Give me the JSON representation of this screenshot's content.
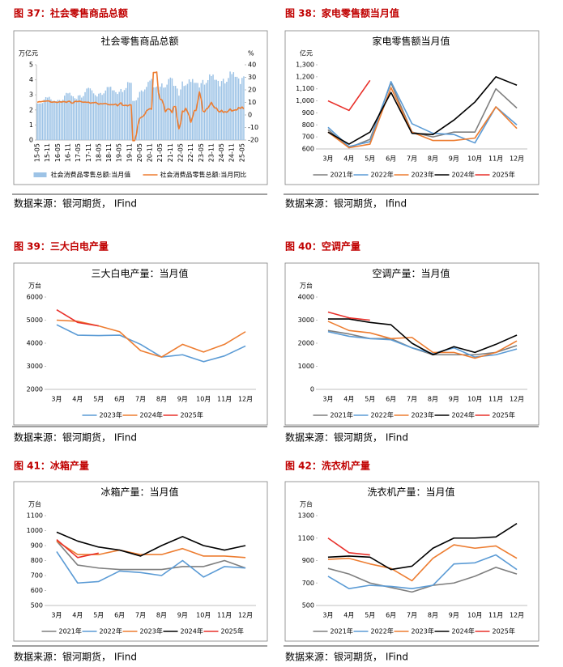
{
  "figures": [
    {
      "heading": "图 37：社会零售商品总额",
      "source": "数据来源：银河期货，  IFind"
    },
    {
      "heading": "图 38：家电零售额当月值",
      "source": "数据来源：银河期货，  Ifind"
    },
    {
      "heading": "图 39：三大白电产量",
      "source": "数据来源：银河期货，  IFind"
    },
    {
      "heading": "图 40：空调产量",
      "source": "数据来源：银河期货，  IFind"
    },
    {
      "heading": "图 41：冰箱产量",
      "source": "数据来源：银河期货，  IFind"
    },
    {
      "heading": "图 42：洗衣机产量",
      "source": "数据来源：银河期货，  IFind"
    }
  ],
  "chart_data": [
    {
      "type": "bar",
      "title": "社会零售商品总额",
      "y_label": "万亿元",
      "y2_label": "%",
      "categories": [
        "15-05",
        null,
        null,
        null,
        null,
        null,
        "15-11",
        null,
        null,
        null,
        null,
        null,
        "16-05",
        null,
        null,
        null,
        null,
        null,
        "16-11",
        null,
        null,
        null,
        null,
        null,
        "17-05",
        null,
        null,
        null,
        null,
        null,
        "17-11",
        null,
        null,
        null,
        null,
        null,
        "18-05",
        null,
        null,
        null,
        null,
        null,
        "18-11",
        null,
        null,
        null,
        null,
        null,
        "19-05",
        null,
        null,
        null,
        null,
        null,
        "19-11",
        null,
        null,
        null,
        null,
        null,
        "20-05",
        null,
        null,
        null,
        null,
        null,
        "20-11",
        null,
        null,
        null,
        null,
        null,
        "21-05",
        null,
        null,
        null,
        null,
        null,
        "21-11",
        null,
        null,
        null,
        null,
        null,
        "22-05",
        null,
        null,
        null,
        null,
        null,
        "22-11",
        null,
        null,
        null,
        null,
        null,
        "23-05",
        null,
        null,
        null,
        null,
        null,
        "23-11",
        null,
        null,
        null,
        null,
        null,
        "24-05",
        null,
        null,
        null,
        null,
        null,
        "24-11",
        null,
        null,
        null,
        null,
        null,
        "25-05",
        null
      ],
      "ylim": [
        0,
        5
      ],
      "yticks": [
        0,
        1,
        2,
        3,
        4,
        5
      ],
      "y2lim": [
        -20,
        40
      ],
      "y2ticks": [
        -20,
        -10,
        0,
        10,
        20,
        30,
        40
      ],
      "series": [
        {
          "name": "社会消费品零售总额:当月值",
          "color": "#9dc3e6",
          "values": [
            2.43,
            2.42,
            2.43,
            2.46,
            2.69,
            2.85,
            2.82,
            2.87,
            2.7,
            2.6,
            2.61,
            2.58,
            2.66,
            2.66,
            2.6,
            2.68,
            2.95,
            3.13,
            3.1,
            3.14,
            2.95,
            2.9,
            2.78,
            2.72,
            2.96,
            2.98,
            2.82,
            2.92,
            3.18,
            3.42,
            3.47,
            3.43,
            3.3,
            3.1,
            2.98,
            2.89,
            3.08,
            3.13,
            3.0,
            3.1,
            3.29,
            3.52,
            3.52,
            3.54,
            3.3,
            3.3,
            3.18,
            3.06,
            3.2,
            3.39,
            3.19,
            3.32,
            3.45,
            3.85,
            3.81,
            3.8,
            2.6,
            2.6,
            2.64,
            2.82,
            3.2,
            3.3,
            3.22,
            3.36,
            3.53,
            3.86,
            3.95,
            4.06,
            3.5,
            3.5,
            3.55,
            3.32,
            3.54,
            3.76,
            3.48,
            3.5,
            3.68,
            4.05,
            4.15,
            4.1,
            3.6,
            3.6,
            3.42,
            2.95,
            3.36,
            3.89,
            3.59,
            3.63,
            3.73,
            4.03,
            3.86,
            4.05,
            3.8,
            3.8,
            3.79,
            3.49,
            3.78,
            3.99,
            3.68,
            3.79,
            3.98,
            4.36,
            4.25,
            4.35,
            4.0,
            4.0,
            3.93,
            3.57,
            3.92,
            4.07,
            3.76,
            3.87,
            4.12,
            4.55,
            4.38,
            4.51,
            4.2,
            4.2,
            4.09,
            3.72,
            4.13,
            4.23
          ]
        },
        {
          "name": "社会消费品零售总额:当月同比",
          "color": "#ed7d31",
          "type": "line",
          "axis": "y2",
          "values": [
            10.1,
            10.6,
            10.5,
            10.8,
            10.9,
            11.0,
            11.2,
            11.1,
            10.2,
            10.2,
            10.5,
            10.1,
            10.0,
            10.6,
            10.2,
            10.6,
            10.7,
            10.0,
            10.8,
            10.9,
            9.5,
            9.5,
            10.9,
            10.7,
            10.7,
            11.0,
            10.4,
            10.1,
            10.3,
            10.0,
            10.2,
            9.4,
            9.7,
            9.7,
            10.1,
            9.4,
            8.5,
            9.0,
            8.8,
            9.0,
            9.2,
            8.6,
            8.1,
            8.2,
            8.2,
            8.2,
            8.7,
            7.2,
            8.6,
            9.8,
            7.6,
            7.5,
            7.8,
            7.2,
            8.0,
            8.0,
            -20.5,
            -20.5,
            -15.8,
            -7.5,
            -2.8,
            -1.8,
            -1.1,
            0.5,
            3.3,
            4.3,
            5.0,
            4.6,
            33.8,
            33.8,
            34.2,
            17.7,
            12.4,
            12.1,
            8.5,
            2.5,
            4.4,
            4.9,
            3.9,
            1.7,
            6.7,
            6.7,
            -3.5,
            -11.1,
            -6.7,
            3.1,
            2.7,
            5.4,
            2.5,
            -0.5,
            -5.9,
            -1.8,
            3.5,
            3.5,
            10.6,
            18.4,
            12.7,
            3.1,
            2.5,
            4.6,
            5.5,
            7.6,
            10.1,
            7.4,
            5.5,
            5.5,
            3.1,
            2.3,
            3.7,
            2.0,
            2.7,
            2.1,
            3.2,
            4.8,
            3.0,
            3.7,
            4.0,
            4.0,
            5.9,
            5.1,
            6.4,
            4.8
          ]
        }
      ]
    },
    {
      "type": "line",
      "title": "家电零售额当月值",
      "y_label": "亿元",
      "categories": [
        "3月",
        "4月",
        "5月",
        "6月",
        "7月",
        "8月",
        "9月",
        "10月",
        "11月",
        "12月"
      ],
      "ylim": [
        600,
        1300
      ],
      "yticks": [
        600,
        700,
        800,
        900,
        {
          "value": 1000,
          "label": "1,000"
        },
        {
          "value": 1100,
          "label": "1,100"
        },
        {
          "value": 1200,
          "label": "1,200"
        },
        {
          "value": 1300,
          "label": "1,300"
        }
      ],
      "series": [
        {
          "name": "2021年",
          "color": "#7f7f7f",
          "values": [
            760,
            610,
            680,
            1150,
            740,
            700,
            740,
            740,
            1100,
            940
          ]
        },
        {
          "name": "2022年",
          "color": "#5b9bd5",
          "values": [
            780,
            620,
            660,
            1160,
            810,
            730,
            720,
            650,
            950,
            800
          ]
        },
        {
          "name": "2023年",
          "color": "#ed7d31",
          "values": [
            740,
            610,
            640,
            1110,
            740,
            670,
            670,
            690,
            950,
            770
          ]
        },
        {
          "name": "2024年",
          "color": "#000000",
          "values": [
            740,
            640,
            740,
            1070,
            730,
            720,
            840,
            990,
            1200,
            1130
          ]
        },
        {
          "name": "2025年",
          "color": "#e8302a",
          "values": [
            1000,
            920,
            1170,
            null,
            null,
            null,
            null,
            null,
            null,
            null
          ]
        }
      ]
    },
    {
      "type": "line",
      "title": "三大白电产量：当月值",
      "y_label": "万台",
      "categories": [
        "3月",
        "4月",
        "5月",
        "6月",
        "7月",
        "8月",
        "9月",
        "10月",
        "11月",
        "12月"
      ],
      "ylim": [
        2000,
        6000
      ],
      "yticks": [
        2000,
        3000,
        4000,
        5000,
        6000
      ],
      "series": [
        {
          "name": "2023年",
          "color": "#5b9bd5",
          "values": [
            4800,
            4350,
            4330,
            4350,
            3950,
            3400,
            3500,
            3200,
            3450,
            3880
          ]
        },
        {
          "name": "2024年",
          "color": "#ed7d31",
          "values": [
            5000,
            4950,
            4750,
            4500,
            3680,
            3400,
            3950,
            3620,
            3950,
            4500
          ]
        },
        {
          "name": "2025年",
          "color": "#e8302a",
          "values": [
            5450,
            4900,
            4750,
            null,
            null,
            null,
            null,
            null,
            null,
            null
          ]
        }
      ]
    },
    {
      "type": "line",
      "title": "空调产量：当月值",
      "y_label": "万台",
      "categories": [
        "3月",
        "4月",
        "5月",
        "6月",
        "7月",
        "8月",
        "9月",
        "10月",
        "11月",
        "12月"
      ],
      "ylim": [
        0,
        4000
      ],
      "yticks": [
        0,
        1000,
        2000,
        3000,
        4000
      ],
      "series": [
        {
          "name": "2021年",
          "color": "#7f7f7f",
          "values": [
            2550,
            2400,
            2200,
            2200,
            1800,
            1500,
            1500,
            1500,
            1600,
            1900
          ]
        },
        {
          "name": "2022年",
          "color": "#5b9bd5",
          "values": [
            2500,
            2300,
            2200,
            2150,
            1800,
            1550,
            1800,
            1400,
            1500,
            1750
          ]
        },
        {
          "name": "2023年",
          "color": "#ed7d31",
          "values": [
            2950,
            2550,
            2450,
            2200,
            2250,
            1600,
            1600,
            1350,
            1600,
            2100
          ]
        },
        {
          "name": "2024年",
          "color": "#000000",
          "values": [
            3050,
            3050,
            2900,
            2800,
            2000,
            1500,
            1850,
            1600,
            1950,
            2350
          ]
        },
        {
          "name": "2025年",
          "color": "#e8302a",
          "values": [
            3350,
            3100,
            3000,
            null,
            null,
            null,
            null,
            null,
            null,
            null
          ]
        }
      ]
    },
    {
      "type": "line",
      "title": "冰箱产量：当月值",
      "y_label": "万台",
      "categories": [
        "3月",
        "4月",
        "5月",
        "6月",
        "7月",
        "8月",
        "9月",
        "10月",
        "11月",
        "12月"
      ],
      "ylim": [
        500,
        1100
      ],
      "yticks": [
        500,
        600,
        700,
        800,
        900,
        1000,
        1100
      ],
      "series": [
        {
          "name": "2021年",
          "color": "#7f7f7f",
          "values": [
            930,
            770,
            750,
            740,
            740,
            740,
            760,
            760,
            800,
            750
          ]
        },
        {
          "name": "2022年",
          "color": "#5b9bd5",
          "values": [
            860,
            650,
            660,
            730,
            720,
            700,
            800,
            690,
            760,
            750
          ]
        },
        {
          "name": "2023年",
          "color": "#ed7d31",
          "values": [
            930,
            840,
            840,
            870,
            840,
            840,
            880,
            830,
            830,
            820
          ]
        },
        {
          "name": "2024年",
          "color": "#000000",
          "values": [
            990,
            930,
            890,
            870,
            830,
            900,
            960,
            900,
            870,
            900
          ]
        },
        {
          "name": "2025年",
          "color": "#e8302a",
          "values": [
            940,
            820,
            850,
            null,
            null,
            null,
            null,
            null,
            null,
            null
          ]
        }
      ]
    },
    {
      "type": "line",
      "title": "洗衣机产量：当月值",
      "y_label": "万台",
      "categories": [
        "3月",
        "4月",
        "5月",
        "6月",
        "7月",
        "8月",
        "9月",
        "10月",
        "11月",
        "12月"
      ],
      "ylim": [
        500,
        1300
      ],
      "yticks": [
        500,
        700,
        900,
        1100,
        1300
      ],
      "series": [
        {
          "name": "2021年",
          "color": "#7f7f7f",
          "values": [
            830,
            780,
            700,
            660,
            620,
            680,
            700,
            760,
            840,
            780
          ]
        },
        {
          "name": "2022年",
          "color": "#5b9bd5",
          "values": [
            760,
            650,
            680,
            670,
            650,
            680,
            870,
            880,
            950,
            820
          ]
        },
        {
          "name": "2023年",
          "color": "#ed7d31",
          "values": [
            910,
            920,
            870,
            830,
            720,
            920,
            1040,
            1010,
            1030,
            920
          ]
        },
        {
          "name": "2024年",
          "color": "#000000",
          "values": [
            930,
            940,
            930,
            820,
            850,
            1010,
            1100,
            1100,
            1110,
            1230
          ]
        },
        {
          "name": "2025年",
          "color": "#e8302a",
          "values": [
            1100,
            970,
            950,
            null,
            null,
            null,
            null,
            null,
            null,
            null
          ]
        }
      ]
    }
  ]
}
